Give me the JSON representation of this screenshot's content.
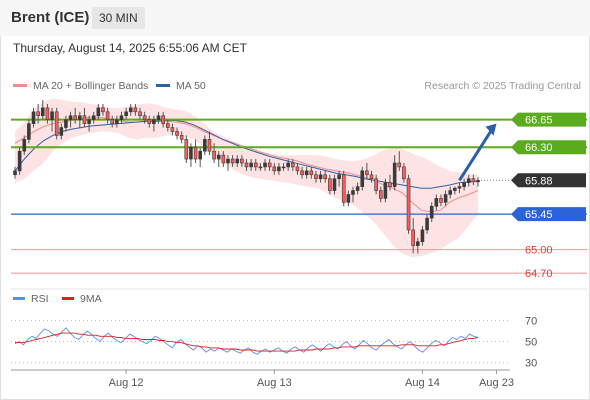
{
  "header": {
    "symbol": "Brent (ICE)",
    "interval": "30 MIN",
    "datetime": "Thursday, August 14, 2025 6:55:06 AM CET"
  },
  "legend": {
    "bb_label": "MA 20 + Bollinger Bands",
    "ma50_label": "MA 50",
    "credit": "Research © 2025 Trading Central",
    "bb_color": "#f28b8b",
    "ma50_color": "#2f5fa6"
  },
  "rsi_legend": {
    "rsi_label": "RSI",
    "ma9_label": "9MA",
    "rsi_color": "#5b8def",
    "ma9_color": "#e01e1e"
  },
  "colors": {
    "resistance": "#5aab1e",
    "pivot": "#2b63d9",
    "support": "#f4a3a3",
    "current": "#333333",
    "arrow": "#2b5fa6"
  },
  "chart_data": [
    {
      "type": "candlestick",
      "ylim": [
        64.55,
        66.9
      ],
      "xlim": [
        0,
        110
      ],
      "x_ticks": [
        {
          "label": "Aug 12",
          "x": 24
        },
        {
          "label": "Aug 13",
          "x": 56
        },
        {
          "label": "Aug 14",
          "x": 88
        },
        {
          "label": "Aug 23",
          "x": 104
        }
      ],
      "levels": [
        {
          "label": "66.65",
          "value": 66.65,
          "kind": "resistance"
        },
        {
          "label": "66.30",
          "value": 66.3,
          "kind": "resistance"
        },
        {
          "label": "65.88",
          "value": 65.88,
          "kind": "current"
        },
        {
          "label": "65.45",
          "value": 65.45,
          "kind": "pivot"
        },
        {
          "label": "65.00",
          "value": 65.0,
          "kind": "support"
        },
        {
          "label": "64.70",
          "value": 64.7,
          "kind": "support"
        }
      ],
      "arrow": {
        "from": [
          96,
          65.88
        ],
        "to": [
          104,
          66.6
        ]
      },
      "candles": [
        [
          65.95,
          66.05,
          65.9,
          66.0
        ],
        [
          66.0,
          66.3,
          65.95,
          66.25
        ],
        [
          66.25,
          66.45,
          66.2,
          66.4
        ],
        [
          66.4,
          66.65,
          66.35,
          66.6
        ],
        [
          66.6,
          66.8,
          66.55,
          66.75
        ],
        [
          66.75,
          66.85,
          66.6,
          66.7
        ],
        [
          66.7,
          66.9,
          66.65,
          66.8
        ],
        [
          66.8,
          66.85,
          66.6,
          66.65
        ],
        [
          66.65,
          66.8,
          66.5,
          66.75
        ],
        [
          66.75,
          66.8,
          66.4,
          66.45
        ],
        [
          66.45,
          66.6,
          66.4,
          66.55
        ],
        [
          66.55,
          66.7,
          66.5,
          66.65
        ],
        [
          66.65,
          66.75,
          66.55,
          66.7
        ],
        [
          66.7,
          66.8,
          66.6,
          66.65
        ],
        [
          66.65,
          66.75,
          66.55,
          66.7
        ],
        [
          66.7,
          66.8,
          66.55,
          66.6
        ],
        [
          66.6,
          66.7,
          66.5,
          66.65
        ],
        [
          66.65,
          66.75,
          66.6,
          66.7
        ],
        [
          66.7,
          66.85,
          66.65,
          66.8
        ],
        [
          66.8,
          66.85,
          66.7,
          66.75
        ],
        [
          66.75,
          66.8,
          66.6,
          66.65
        ],
        [
          66.65,
          66.7,
          66.55,
          66.6
        ],
        [
          66.6,
          66.7,
          66.55,
          66.65
        ],
        [
          66.65,
          66.75,
          66.6,
          66.7
        ],
        [
          66.7,
          66.8,
          66.65,
          66.75
        ],
        [
          66.75,
          66.85,
          66.7,
          66.8
        ],
        [
          66.8,
          66.85,
          66.7,
          66.75
        ],
        [
          66.75,
          66.8,
          66.65,
          66.7
        ],
        [
          66.7,
          66.75,
          66.6,
          66.65
        ],
        [
          66.65,
          66.7,
          66.55,
          66.6
        ],
        [
          66.6,
          66.7,
          66.5,
          66.65
        ],
        [
          66.65,
          66.75,
          66.6,
          66.7
        ],
        [
          66.7,
          66.75,
          66.55,
          66.6
        ],
        [
          66.6,
          66.65,
          66.5,
          66.55
        ],
        [
          66.55,
          66.6,
          66.45,
          66.5
        ],
        [
          66.5,
          66.55,
          66.4,
          66.45
        ],
        [
          66.45,
          66.5,
          66.35,
          66.4
        ],
        [
          66.4,
          66.45,
          66.1,
          66.15
        ],
        [
          66.15,
          66.35,
          66.05,
          66.3
        ],
        [
          66.3,
          66.4,
          66.1,
          66.15
        ],
        [
          66.15,
          66.3,
          66.05,
          66.25
        ],
        [
          66.25,
          66.45,
          66.2,
          66.4
        ],
        [
          66.4,
          66.5,
          66.2,
          66.25
        ],
        [
          66.25,
          66.35,
          66.1,
          66.15
        ],
        [
          66.15,
          66.25,
          66.05,
          66.2
        ],
        [
          66.2,
          66.25,
          66.05,
          66.1
        ],
        [
          66.1,
          66.2,
          66.0,
          66.15
        ],
        [
          66.15,
          66.2,
          66.05,
          66.1
        ],
        [
          66.1,
          66.2,
          66.05,
          66.15
        ],
        [
          66.15,
          66.2,
          66.05,
          66.1
        ],
        [
          66.1,
          66.15,
          66.0,
          66.05
        ],
        [
          66.05,
          66.15,
          66.0,
          66.1
        ],
        [
          66.1,
          66.15,
          66.0,
          66.05
        ],
        [
          66.05,
          66.1,
          66.0,
          66.05
        ],
        [
          66.05,
          66.15,
          66.0,
          66.1
        ],
        [
          66.1,
          66.15,
          66.0,
          66.05
        ],
        [
          66.05,
          66.1,
          65.95,
          66.0
        ],
        [
          66.0,
          66.1,
          65.95,
          66.05
        ],
        [
          66.05,
          66.1,
          66.0,
          66.05
        ],
        [
          66.05,
          66.15,
          66.0,
          66.1
        ],
        [
          66.1,
          66.15,
          66.0,
          66.05
        ],
        [
          66.05,
          66.1,
          65.95,
          66.0
        ],
        [
          66.0,
          66.05,
          65.9,
          65.95
        ],
        [
          65.95,
          66.05,
          65.9,
          66.0
        ],
        [
          66.0,
          66.05,
          65.9,
          65.95
        ],
        [
          65.95,
          66.0,
          65.85,
          65.9
        ],
        [
          65.9,
          66.0,
          65.85,
          65.95
        ],
        [
          65.95,
          66.0,
          65.85,
          65.9
        ],
        [
          65.9,
          65.95,
          65.7,
          65.75
        ],
        [
          65.75,
          65.95,
          65.7,
          65.9
        ],
        [
          65.9,
          66.0,
          65.8,
          65.95
        ],
        [
          65.95,
          66.0,
          65.55,
          65.6
        ],
        [
          65.6,
          65.75,
          65.55,
          65.7
        ],
        [
          65.7,
          65.8,
          65.6,
          65.75
        ],
        [
          65.75,
          65.85,
          65.7,
          65.8
        ],
        [
          65.8,
          66.05,
          65.75,
          66.0
        ],
        [
          66.0,
          66.1,
          65.9,
          65.95
        ],
        [
          65.95,
          66.0,
          65.85,
          65.9
        ],
        [
          65.9,
          65.95,
          65.7,
          65.75
        ],
        [
          65.75,
          65.8,
          65.6,
          65.65
        ],
        [
          65.65,
          65.9,
          65.6,
          65.85
        ],
        [
          65.85,
          65.95,
          65.75,
          65.8
        ],
        [
          65.8,
          66.2,
          65.75,
          66.1
        ],
        [
          66.1,
          66.25,
          66.0,
          66.05
        ],
        [
          66.05,
          66.1,
          65.85,
          65.9
        ],
        [
          65.9,
          65.95,
          65.2,
          65.25
        ],
        [
          65.25,
          65.4,
          64.95,
          65.05
        ],
        [
          65.05,
          65.15,
          64.95,
          65.1
        ],
        [
          65.1,
          65.3,
          65.05,
          65.25
        ],
        [
          65.25,
          65.45,
          65.2,
          65.4
        ],
        [
          65.4,
          65.6,
          65.35,
          65.55
        ],
        [
          65.55,
          65.7,
          65.5,
          65.65
        ],
        [
          65.65,
          65.7,
          65.55,
          65.6
        ],
        [
          65.6,
          65.75,
          65.55,
          65.7
        ],
        [
          65.7,
          65.8,
          65.65,
          65.75
        ],
        [
          65.75,
          65.8,
          65.7,
          65.78
        ],
        [
          65.78,
          65.85,
          65.72,
          65.8
        ],
        [
          65.8,
          65.9,
          65.75,
          65.85
        ],
        [
          65.85,
          65.95,
          65.8,
          65.9
        ],
        [
          65.9,
          65.95,
          65.82,
          65.86
        ],
        [
          65.86,
          65.92,
          65.8,
          65.88
        ]
      ],
      "ma20": [
        66.35,
        66.42,
        66.5,
        66.56,
        66.6,
        66.62,
        66.64,
        66.66,
        66.68,
        66.68,
        66.66,
        66.64,
        66.62,
        66.62,
        66.64,
        66.64,
        66.63,
        66.62,
        66.6,
        66.56,
        66.5,
        66.45,
        66.4,
        66.36,
        66.32,
        66.28,
        66.24,
        66.2,
        66.17,
        66.15,
        66.12,
        66.08,
        66.05,
        66.02,
        66.0,
        65.98,
        65.95,
        65.92,
        65.88,
        65.82,
        65.78,
        65.72,
        65.6,
        65.5,
        65.48,
        65.5,
        65.6,
        65.66,
        65.7,
        65.75
      ],
      "bb_upper": [
        66.5,
        66.62,
        66.78,
        66.88,
        66.92,
        66.9,
        66.88,
        66.87,
        66.85,
        66.83,
        66.8,
        66.8,
        66.82,
        66.84,
        66.86,
        66.84,
        66.8,
        66.78,
        66.76,
        66.7,
        66.6,
        66.5,
        66.44,
        66.38,
        66.32,
        66.28,
        66.24,
        66.22,
        66.2,
        66.2,
        66.2,
        66.2,
        66.2,
        66.18,
        66.15,
        66.13,
        66.12,
        66.15,
        66.2,
        66.26,
        66.3,
        66.28,
        66.22,
        66.18,
        66.12,
        66.05,
        66.0,
        65.98,
        65.96,
        65.95
      ],
      "bb_lower": [
        65.85,
        65.9,
        66.0,
        66.1,
        66.25,
        66.35,
        66.42,
        66.45,
        66.48,
        66.5,
        66.5,
        66.48,
        66.42,
        66.4,
        66.42,
        66.42,
        66.45,
        66.46,
        66.44,
        66.4,
        66.3,
        66.2,
        66.1,
        66.02,
        65.96,
        65.92,
        65.9,
        65.88,
        65.86,
        65.85,
        65.82,
        65.8,
        65.78,
        65.72,
        65.65,
        65.6,
        65.55,
        65.45,
        65.35,
        65.2,
        65.05,
        64.95,
        64.9,
        64.92,
        64.95,
        65.0,
        65.08,
        65.15,
        65.3,
        65.45
      ],
      "ma50": [
        66.0,
        66.15,
        66.28,
        66.38,
        66.45,
        66.5,
        66.53,
        66.55,
        66.57,
        66.58,
        66.59,
        66.6,
        66.61,
        66.62,
        66.63,
        66.63,
        66.64,
        66.64,
        66.62,
        66.58,
        66.52,
        66.46,
        66.4,
        66.35,
        66.3,
        66.26,
        66.22,
        66.18,
        66.15,
        66.12,
        66.09,
        66.06,
        66.03,
        66.0,
        65.97,
        65.95,
        65.93,
        65.9,
        65.88,
        65.86,
        65.84,
        65.82,
        65.8,
        65.78,
        65.78,
        65.8,
        65.82,
        65.85,
        65.86,
        65.87
      ]
    },
    {
      "type": "line",
      "ylim": [
        25,
        78
      ],
      "y_ticks": [
        70,
        50,
        30
      ],
      "rsi": [
        48,
        50,
        47,
        52,
        55,
        53,
        58,
        62,
        60,
        57,
        55,
        59,
        63,
        58,
        54,
        52,
        56,
        60,
        57,
        53,
        50,
        55,
        58,
        54,
        51,
        49,
        53,
        57,
        55,
        52,
        50,
        48,
        51,
        55,
        53,
        50,
        47,
        44,
        49,
        52,
        48,
        45,
        42,
        46,
        44,
        40,
        43,
        41,
        44,
        42,
        40,
        43,
        41,
        39,
        42,
        44,
        40,
        38,
        41,
        43,
        40,
        42,
        44,
        41,
        39,
        43,
        45,
        42,
        40,
        44,
        47,
        44,
        41,
        45,
        48,
        45,
        43,
        47,
        50,
        46,
        43,
        47,
        51,
        48,
        44,
        42,
        46,
        49,
        52,
        48,
        45,
        43,
        47,
        50,
        46,
        42,
        40,
        44,
        48,
        51,
        49,
        46,
        50,
        54,
        52,
        55,
        53,
        57,
        55,
        54
      ],
      "ma9": [
        49,
        49,
        49,
        50,
        51,
        52,
        53,
        54,
        55,
        56,
        57,
        58,
        58,
        58,
        58,
        57,
        57,
        56,
        56,
        56,
        55,
        55,
        55,
        55,
        54,
        54,
        53,
        53,
        53,
        53,
        52,
        52,
        52,
        52,
        51,
        51,
        50,
        50,
        49,
        49,
        48,
        47,
        46,
        46,
        45,
        45,
        44,
        44,
        44,
        43,
        43,
        43,
        43,
        42,
        42,
        42,
        42,
        41,
        41,
        41,
        41,
        41,
        41,
        41,
        41,
        41,
        41,
        42,
        42,
        42,
        42,
        43,
        43,
        43,
        43,
        44,
        44,
        45,
        45,
        45,
        45,
        46,
        46,
        46,
        46,
        46,
        46,
        46,
        46,
        46,
        46,
        47,
        47,
        47,
        47,
        46,
        46,
        46,
        46,
        46,
        47,
        47,
        48,
        49,
        50,
        51,
        52,
        53,
        53,
        54
      ]
    }
  ]
}
